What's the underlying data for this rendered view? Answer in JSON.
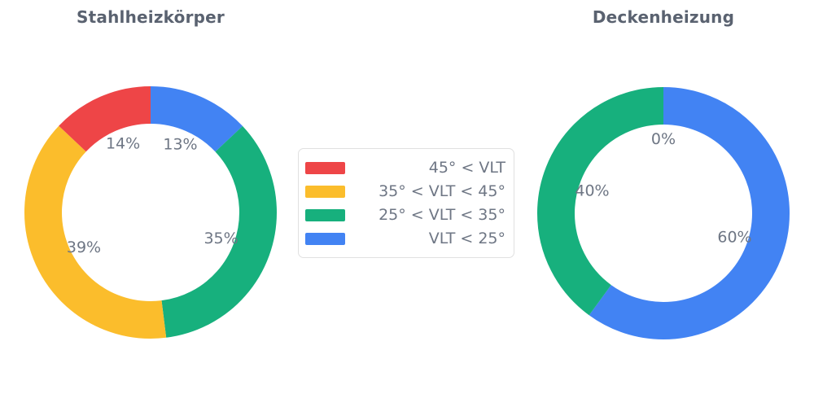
{
  "colors": {
    "red": "#ee4547",
    "yellow": "#fbbd2c",
    "green": "#17b07d",
    "blue": "#4283f3",
    "label_gray": "#6e7684",
    "title_gray": "#5a6270"
  },
  "legend": {
    "items": [
      {
        "label": "45° < VLT",
        "color": "#ee4547"
      },
      {
        "label": "35° < VLT < 45°",
        "color": "#fbbd2c"
      },
      {
        "label": "25° < VLT < 35°",
        "color": "#17b07d"
      },
      {
        "label": "VLT < 25°",
        "color": "#4283f3"
      }
    ]
  },
  "chart_data": [
    {
      "type": "pie",
      "title": "Stahlheizkörper",
      "categories": [
        "45° < VLT",
        "35° < VLT < 45°",
        "25° < VLT < 35°",
        "VLT < 25°"
      ],
      "values": [
        14,
        39,
        35,
        13
      ],
      "labels_shown": [
        "14%",
        "39%",
        "35%",
        "13%"
      ],
      "colors": [
        "#ee4547",
        "#fbbd2c",
        "#17b07d",
        "#4283f3"
      ],
      "unit": "%",
      "hole": 0.7,
      "direction": "counterclockwise",
      "start_angle": "top",
      "legend_position": "center-between-charts"
    },
    {
      "type": "pie",
      "title": "Deckenheizung",
      "categories": [
        "45° < VLT",
        "35° < VLT < 45°",
        "25° < VLT < 35°",
        "VLT < 25°"
      ],
      "values": [
        0,
        0,
        40,
        60
      ],
      "labels_shown": [
        "0%",
        "0%",
        "40%",
        "60%"
      ],
      "colors": [
        "#ee4547",
        "#fbbd2c",
        "#17b07d",
        "#4283f3"
      ],
      "unit": "%",
      "hole": 0.7,
      "direction": "counterclockwise",
      "start_angle": "top",
      "legend_position": "center-between-charts"
    }
  ]
}
